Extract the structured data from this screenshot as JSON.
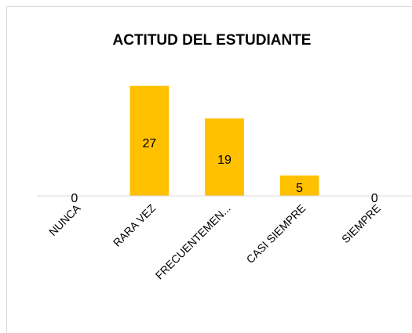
{
  "chart_data": {
    "type": "bar",
    "title": "ACTITUD DEL ESTUDIANTE",
    "categories": [
      "NUNCA",
      "RARA VEZ",
      "FRECUENTEMEN...",
      "CASI SIEMPRE",
      "SIEMPRE"
    ],
    "values": [
      0,
      27,
      19,
      5,
      0
    ],
    "color": "#ffc000",
    "ylim": [
      0,
      30
    ]
  }
}
